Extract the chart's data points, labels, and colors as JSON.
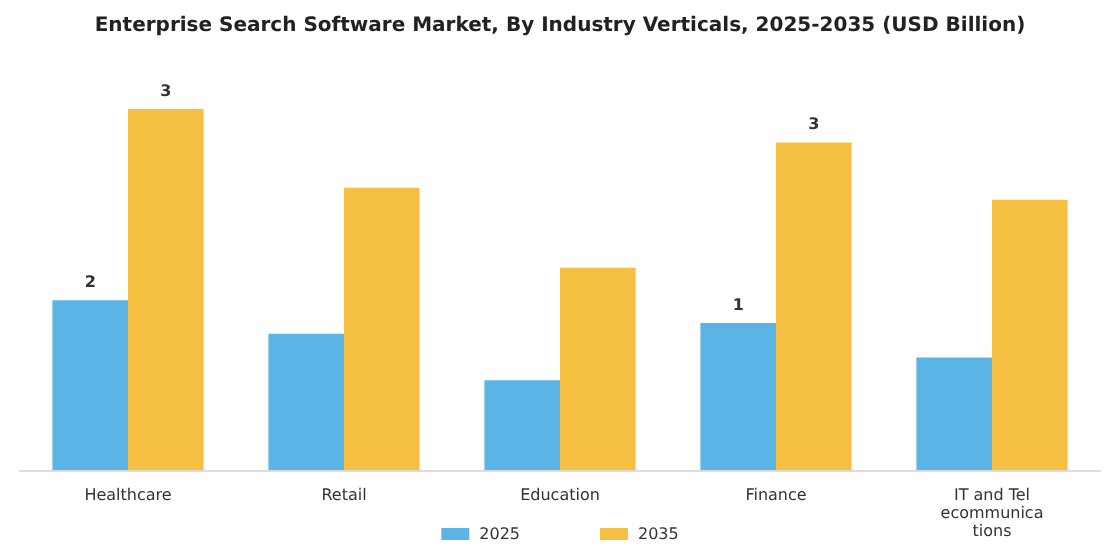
{
  "chart_data": {
    "type": "bar",
    "title": "Enterprise Search Software Market, By Industry Verticals, 2025-2035 (USD Billion)",
    "tick_labels": "x",
    "categories": [
      "Healthcare",
      "Retail",
      "Education",
      "Finance",
      "IT and Telecommunications"
    ],
    "series": [
      {
        "name": "2025",
        "color": "#5ab4e5",
        "values": [
          1.57,
          1.26,
          0.83,
          1.36,
          1.04
        ],
        "value_labels": [
          "2",
          null,
          null,
          "1",
          null
        ]
      },
      {
        "name": "2035",
        "color": "#f5c042",
        "values": [
          3.34,
          2.61,
          1.87,
          3.03,
          2.5
        ],
        "value_labels": [
          "3",
          null,
          null,
          "3",
          null
        ]
      }
    ],
    "legend": "bottom"
  }
}
